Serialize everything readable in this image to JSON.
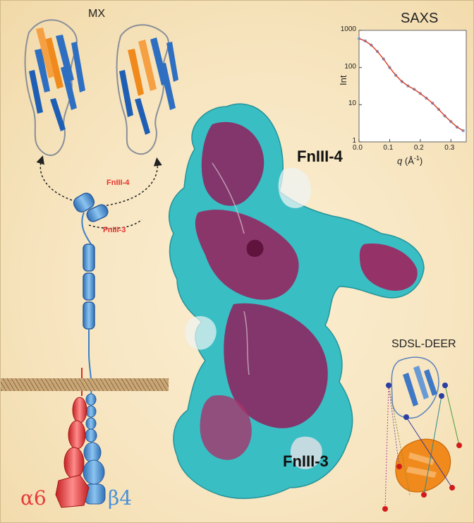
{
  "labels": {
    "mx": "MX",
    "saxs": "SAXS",
    "fn4_small": "FnIII-4",
    "fn3_small": "FnIII-3",
    "fn4_big": "FnIII-4",
    "fn3_big": "FnIII-3",
    "sdsl": "SDSL-DEER",
    "alpha": "α6",
    "beta": "β4"
  },
  "saxs_plot": {
    "ylabel": "Int",
    "xlabel_q": "q",
    "xlabel_unit": "(Å",
    "xlabel_exp": "-1",
    "xlabel_close": ")",
    "yticks": [
      "1000",
      "100",
      "10",
      "1"
    ],
    "xticks": [
      "0.0",
      "0.1",
      "0.2",
      "0.3"
    ]
  },
  "chart_data": {
    "type": "scatter",
    "title": "SAXS",
    "xlabel": "q (Å⁻¹)",
    "ylabel": "Int",
    "yscale": "log",
    "xlim": [
      0,
      0.35
    ],
    "ylim": [
      1,
      1000
    ],
    "series": [
      {
        "name": "",
        "x": [
          0.0,
          0.02,
          0.04,
          0.06,
          0.08,
          0.1,
          0.12,
          0.14,
          0.16,
          0.18,
          0.2,
          0.22,
          0.24,
          0.26,
          0.28,
          0.3,
          0.32,
          0.34
        ],
        "y": [
          600,
          520,
          400,
          270,
          170,
          100,
          62,
          42,
          32,
          26,
          20,
          15,
          11,
          7.5,
          5,
          3.5,
          2.5,
          2
        ]
      }
    ]
  },
  "colors": {
    "background": "#f7e5c0",
    "blue": "#4a90d9",
    "red": "#e53b3b",
    "orange": "#f08a1c",
    "teal": "#2fbcc4",
    "magenta": "#9a1e5c",
    "label_red": "#e8332f",
    "membrane": "#b08858"
  }
}
